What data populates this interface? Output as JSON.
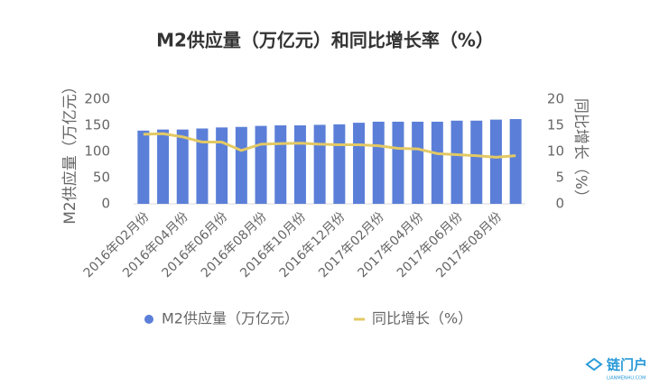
{
  "chart_data": {
    "type": "bar_line",
    "title": "M2供应量（万亿元）和同比增长率（%）",
    "ylabel": "M2供应量（万亿元）",
    "y2label": "同比增长（%）",
    "categories": [
      "2016年02月份",
      null,
      "2016年04月份",
      null,
      "2016年06月份",
      null,
      "2016年08月份",
      null,
      "2016年10月份",
      null,
      "2016年12月份",
      null,
      "2017年02月份",
      null,
      "2017年04月份",
      null,
      "2017年06月份",
      null,
      "2017年08月份",
      null
    ],
    "series": [
      {
        "name": "M2供应量（万亿元）",
        "color": "#5b7fd8",
        "kind": "bar",
        "values": [
          140,
          142,
          142,
          144,
          146,
          147,
          149,
          150,
          150,
          151,
          152,
          155,
          157,
          157,
          157,
          157,
          159,
          159,
          161,
          162
        ]
      },
      {
        "name": "同比增长（%）",
        "color": "#e3c964",
        "kind": "line",
        "axis": "y2",
        "values": [
          13.3,
          13.4,
          12.8,
          11.8,
          11.8,
          10.2,
          11.4,
          11.5,
          11.6,
          11.4,
          11.3,
          11.3,
          11.1,
          10.6,
          10.5,
          9.6,
          9.4,
          9.2,
          8.9,
          9.2
        ]
      }
    ],
    "ylim": [
      0,
      200
    ],
    "yticks": [
      0,
      50,
      100,
      150,
      200
    ],
    "y2lim": [
      0,
      20
    ],
    "y2ticks": [
      0,
      5,
      10,
      15,
      20
    ],
    "legend": "bottom"
  },
  "watermark": {
    "name": "链门户",
    "site": "LIANMENHU.COM"
  }
}
